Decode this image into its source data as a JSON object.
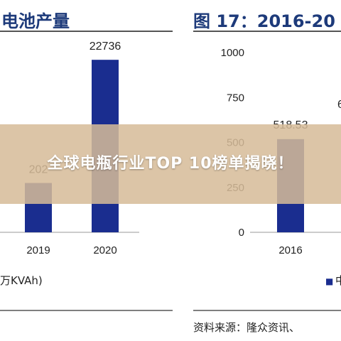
{
  "colors": {
    "bar": "#1a2d8f",
    "title": "#1d3a7a",
    "axis": "#bbbbbb",
    "divider": "#555555",
    "banner_bg": "#d6bc98"
  },
  "left_panel": {
    "title": "电池产量",
    "unit_note": "万KVAh)",
    "tick_labels": [
      "2019",
      "2020"
    ]
  },
  "right_panel": {
    "title": "图 17：2016-20",
    "source": "资料来源：隆众资讯、",
    "legend_glyph": "■",
    "legend_fragment": "中",
    "tick_labels": [
      "2016"
    ],
    "partial_value": "6"
  },
  "banner": {
    "text": "全球电瓶行业TOP 10榜单揭晓！"
  },
  "chart_data": [
    {
      "type": "bar",
      "title": "电池产量",
      "categories": [
        "2019",
        "2020"
      ],
      "values": [
        null,
        22736
      ],
      "value_labels": [
        "202",
        "22736"
      ],
      "ylim": [
        0,
        25000
      ],
      "grid": false
    },
    {
      "type": "bar",
      "title": "图 17：2016-20",
      "categories": [
        "2016"
      ],
      "values": [
        518.53
      ],
      "value_labels": [
        "518.53"
      ],
      "yticks": [
        0,
        250,
        500,
        750,
        1000
      ],
      "ylim": [
        0,
        1000
      ],
      "grid": false
    }
  ]
}
